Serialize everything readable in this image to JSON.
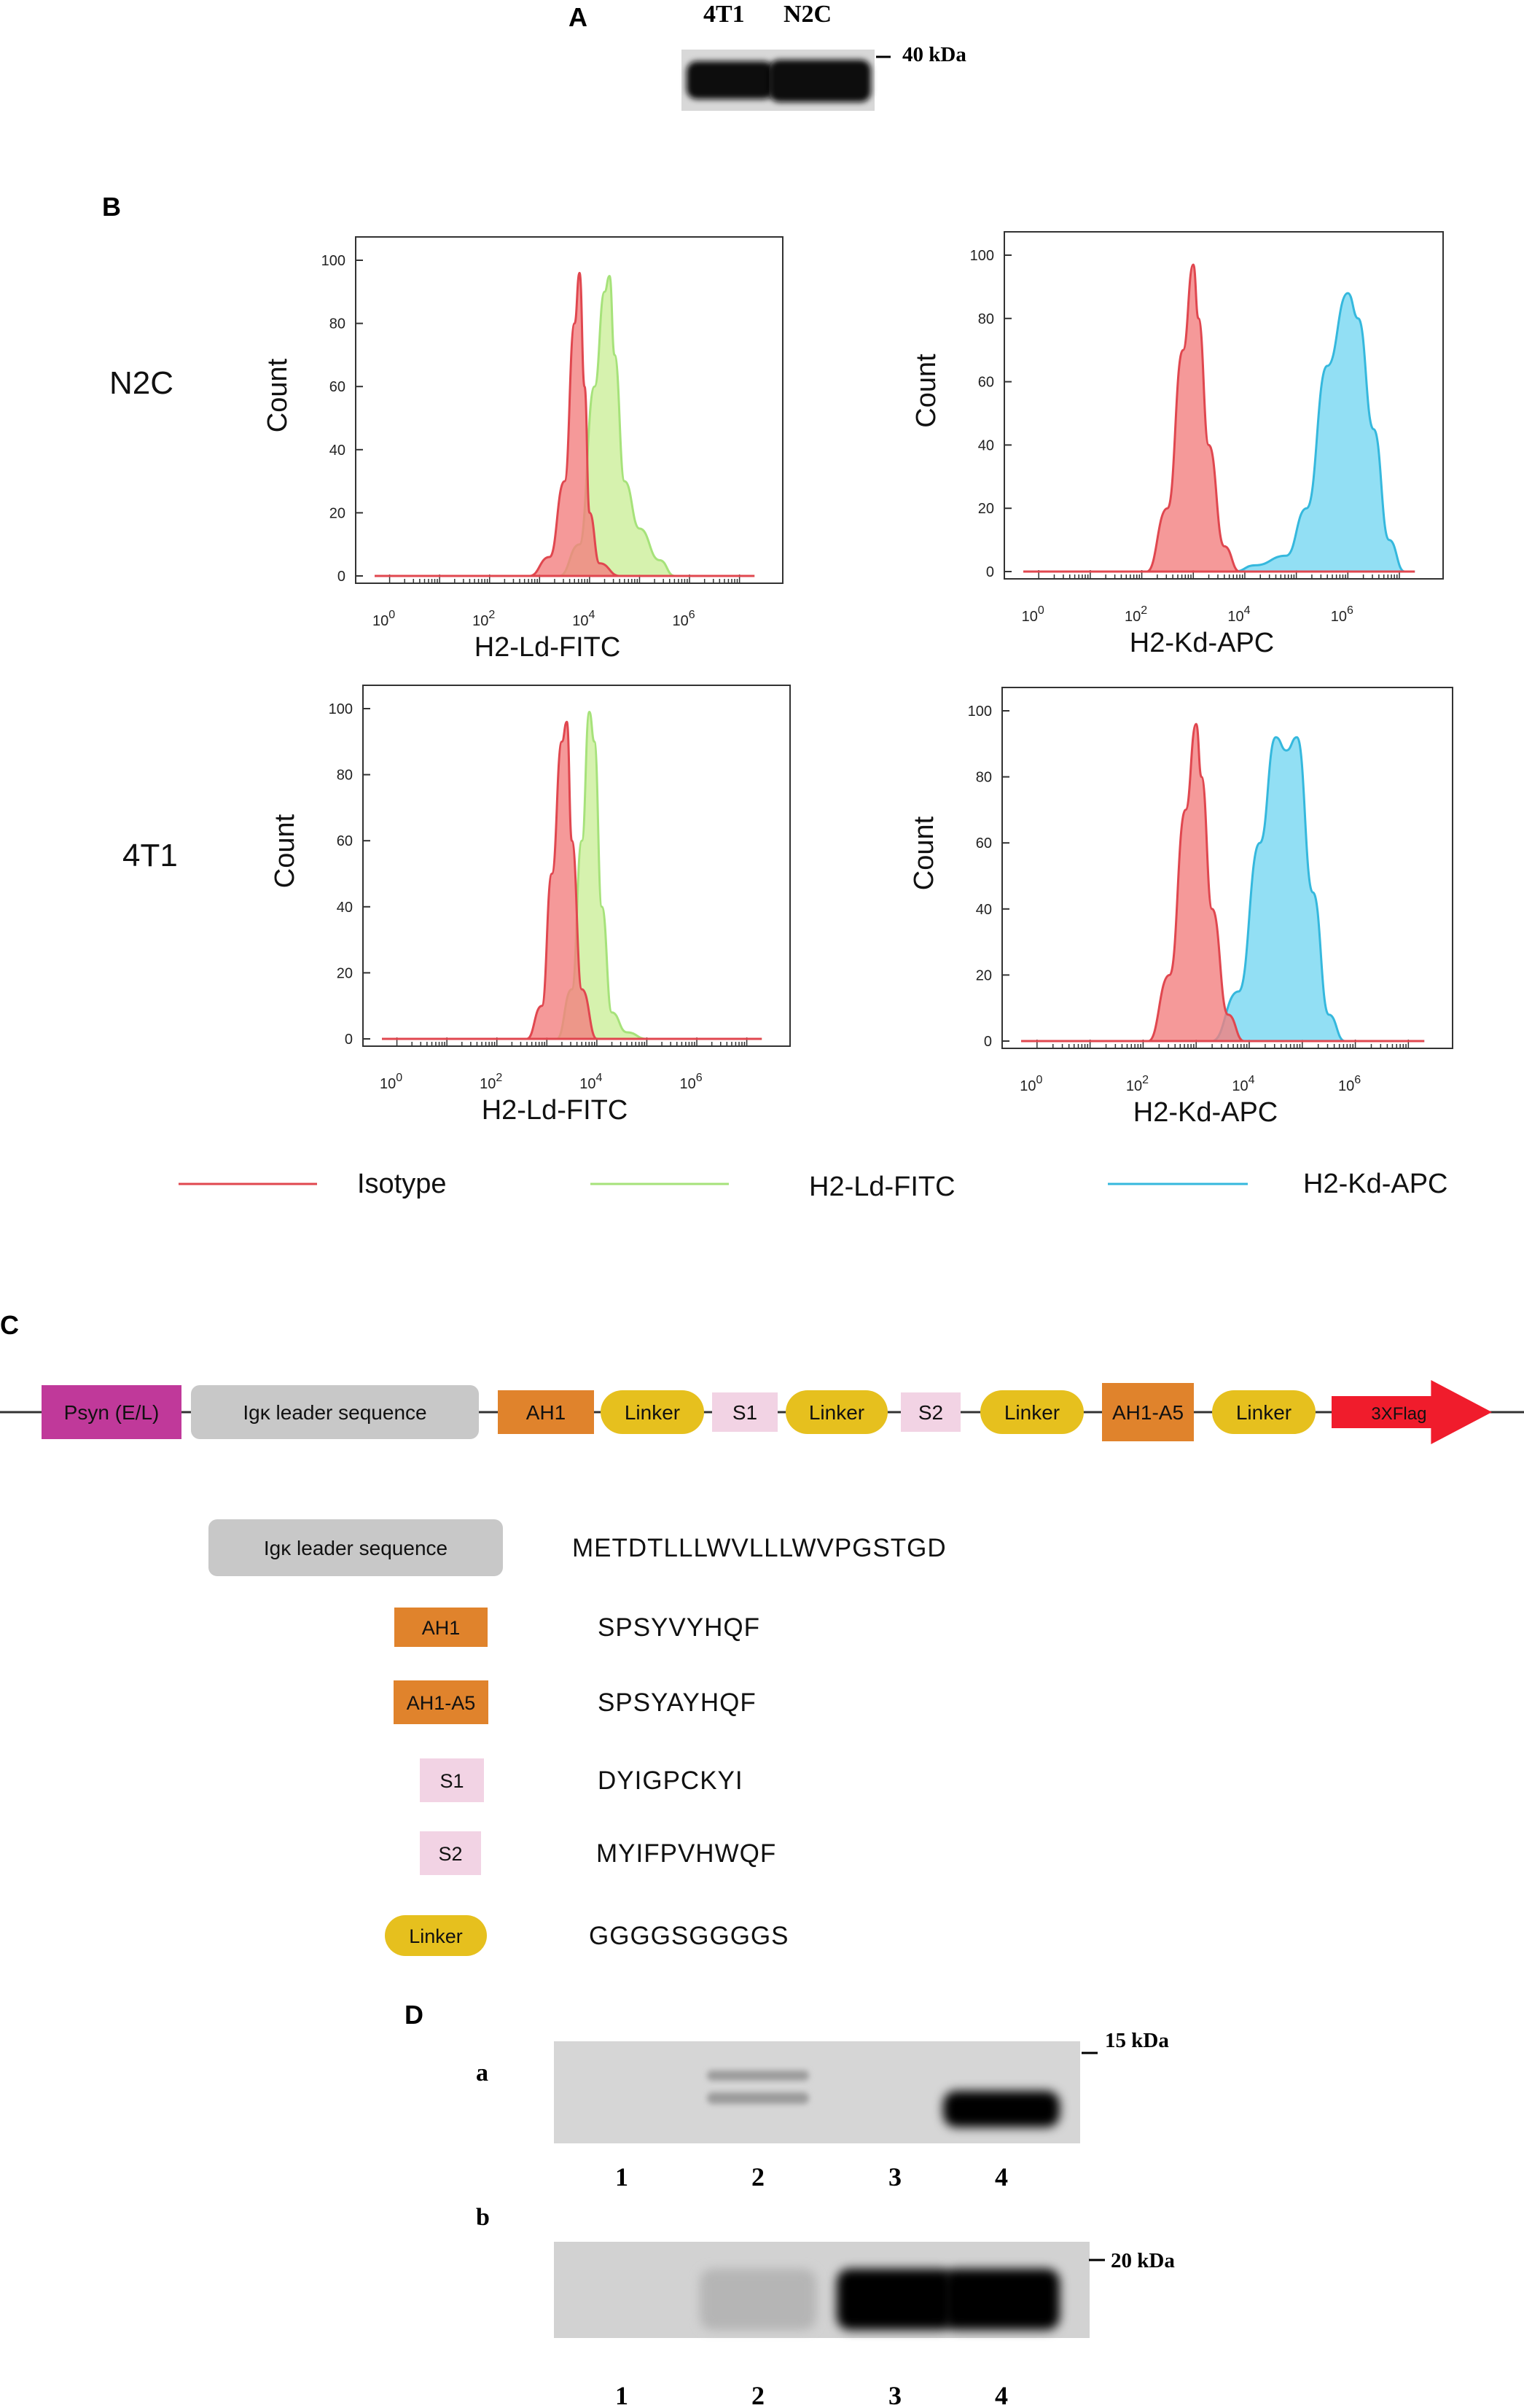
{
  "panel_a": {
    "letter": "A",
    "lanes": [
      "4T1",
      "N2C"
    ],
    "marker": "40 kDa"
  },
  "panel_b": {
    "letter": "B",
    "row_labels": [
      "N2C",
      "4T1"
    ],
    "y_axis_label": "Count",
    "y_ticks": [
      "0",
      "20",
      "40",
      "60",
      "80",
      "100"
    ],
    "x_tick_base": "10",
    "x_tick_exps": [
      "0",
      "2",
      "4",
      "6"
    ],
    "legend": {
      "isotype": "Isotype",
      "ld": "H2-Ld-FITC",
      "kd": "H2-Kd-APC"
    },
    "colors": {
      "isotype_stroke": "#e0474f",
      "isotype_fill": "#f28080",
      "ld_stroke": "#a6e27a",
      "ld_fill": "#cff0a0",
      "kd_stroke": "#35b8dd",
      "kd_fill": "#7fd9f2"
    }
  },
  "chart_data": [
    {
      "type": "area",
      "title": "N2C H2-Ld-FITC",
      "xlabel": "H2-Ld-FITC",
      "ylabel": "Count",
      "xscale": "log10",
      "ylim": [
        0,
        100
      ],
      "series": [
        {
          "name": "Isotype",
          "x_log": [
            2.8,
            3.2,
            3.5,
            3.7,
            3.8,
            3.9,
            4.0,
            4.2,
            4.6
          ],
          "y": [
            0,
            6,
            30,
            80,
            96,
            60,
            20,
            4,
            0
          ]
        },
        {
          "name": "H2-Ld-FITC",
          "x_log": [
            3.4,
            3.8,
            4.1,
            4.3,
            4.4,
            4.5,
            4.7,
            5.0,
            5.4,
            5.7
          ],
          "y": [
            0,
            10,
            60,
            90,
            95,
            70,
            30,
            15,
            5,
            0
          ]
        }
      ]
    },
    {
      "type": "area",
      "title": "N2C H2-Kd-APC",
      "xlabel": "H2-Kd-APC",
      "ylabel": "Count",
      "xscale": "log10",
      "ylim": [
        0,
        100
      ],
      "series": [
        {
          "name": "Isotype",
          "x_log": [
            2.1,
            2.5,
            2.8,
            3.0,
            3.1,
            3.3,
            3.6,
            3.9
          ],
          "y": [
            0,
            20,
            70,
            97,
            80,
            40,
            8,
            0
          ]
        },
        {
          "name": "H2-Kd-APC",
          "x_log": [
            3.8,
            4.2,
            4.8,
            5.2,
            5.6,
            6.0,
            6.2,
            6.5,
            6.8,
            7.1
          ],
          "y": [
            0,
            2,
            5,
            20,
            65,
            88,
            80,
            45,
            10,
            0
          ]
        }
      ]
    },
    {
      "type": "area",
      "title": "4T1 H2-Ld-FITC",
      "xlabel": "H2-Ld-FITC",
      "ylabel": "Count",
      "xscale": "log10",
      "ylim": [
        0,
        100
      ],
      "series": [
        {
          "name": "Isotype",
          "x_log": [
            2.6,
            2.9,
            3.1,
            3.3,
            3.4,
            3.5,
            3.7,
            4.0
          ],
          "y": [
            0,
            10,
            50,
            90,
            96,
            60,
            15,
            0
          ]
        },
        {
          "name": "H2-Ld-FITC",
          "x_log": [
            3.2,
            3.5,
            3.7,
            3.85,
            3.95,
            4.1,
            4.3,
            4.6,
            5.0
          ],
          "y": [
            0,
            15,
            60,
            99,
            90,
            40,
            8,
            2,
            0
          ]
        }
      ]
    },
    {
      "type": "area",
      "title": "4T1 H2-Kd-APC",
      "xlabel": "H2-Kd-APC",
      "ylabel": "Count",
      "xscale": "log10",
      "ylim": [
        0,
        100
      ],
      "series": [
        {
          "name": "Isotype",
          "x_log": [
            2.1,
            2.5,
            2.8,
            3.0,
            3.1,
            3.3,
            3.6,
            3.9
          ],
          "y": [
            0,
            20,
            70,
            96,
            80,
            40,
            8,
            0
          ]
        },
        {
          "name": "H2-Kd-APC",
          "x_log": [
            3.3,
            3.8,
            4.2,
            4.5,
            4.7,
            4.9,
            5.2,
            5.5,
            5.8
          ],
          "y": [
            0,
            15,
            60,
            92,
            88,
            92,
            45,
            8,
            0
          ]
        }
      ]
    }
  ],
  "panel_c": {
    "letter": "C",
    "construct": [
      {
        "label": "Psyn (E/L)",
        "kind": "rect",
        "color": "#c0399a",
        "text_color": "#222"
      },
      {
        "label": "Igκ leader sequence",
        "kind": "rounded",
        "color": "#c8c8c8",
        "text_color": "#333"
      },
      {
        "label": "AH1",
        "kind": "rect",
        "color": "#e0832c",
        "text_color": "#222"
      },
      {
        "label": "Linker",
        "kind": "pill",
        "color": "#e6c01e",
        "text_color": "#222"
      },
      {
        "label": "S1",
        "kind": "rect",
        "color": "#f2d3e4",
        "text_color": "#333"
      },
      {
        "label": "Linker",
        "kind": "pill",
        "color": "#e6c01e",
        "text_color": "#222"
      },
      {
        "label": "S2",
        "kind": "rect",
        "color": "#f2d3e4",
        "text_color": "#333"
      },
      {
        "label": "Linker",
        "kind": "pill",
        "color": "#e6c01e",
        "text_color": "#222"
      },
      {
        "label": "AH1-A5",
        "kind": "rect",
        "color": "#e0832c",
        "text_color": "#222"
      },
      {
        "label": "Linker",
        "kind": "pill",
        "color": "#e6c01e",
        "text_color": "#222"
      },
      {
        "label": "3XFlag",
        "kind": "arrow",
        "color": "#f01c2c",
        "text_color": "#9a0010"
      }
    ],
    "sequences": [
      {
        "label": "Igκ leader sequence",
        "kind": "rounded",
        "color": "#c8c8c8",
        "sequence": "METDTLLLWVLLLWVPGSTGD"
      },
      {
        "label": "AH1",
        "kind": "rect",
        "color": "#e0832c",
        "sequence": "SPSYVYHQF"
      },
      {
        "label": "AH1-A5",
        "kind": "rect",
        "color": "#e0832c",
        "sequence": "SPSYAYHQF"
      },
      {
        "label": "S1",
        "kind": "rect",
        "color": "#f2d3e4",
        "sequence": "DYIGPCKYI"
      },
      {
        "label": "S2",
        "kind": "rect",
        "color": "#f2d3e4",
        "sequence": "MYIFPVHWQF"
      },
      {
        "label": "Linker",
        "kind": "pill",
        "color": "#e6c01e",
        "sequence": "GGGGSGGGGS"
      }
    ]
  },
  "panel_d": {
    "letter": "D",
    "blot_a": {
      "label": "a",
      "marker": "15 kDa",
      "lanes": [
        "1",
        "2",
        "3",
        "4"
      ],
      "band_intensity": [
        0.0,
        0.25,
        0.0,
        1.0
      ]
    },
    "blot_b": {
      "label": "b",
      "marker": "20 kDa",
      "lanes": [
        "1",
        "2",
        "3",
        "4"
      ],
      "band_intensity": [
        0.0,
        0.12,
        1.0,
        1.0
      ]
    }
  }
}
